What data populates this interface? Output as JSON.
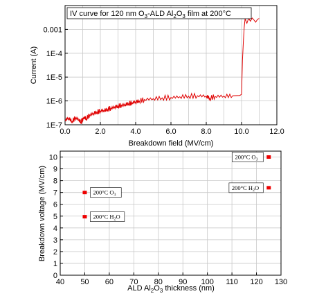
{
  "chart_data": [
    {
      "type": "line",
      "title": "",
      "annotation": {
        "prefix": "IV curve for 120 nm O",
        "sub1": "3",
        "mid1": "-ALD Al",
        "sub2": "2",
        "mid2": "O",
        "sub3": "3",
        "suffix": " film at 200°C"
      },
      "xlabel": "Breakdown field (MV/cm)",
      "ylabel": "Current (A)",
      "xlim": [
        0.0,
        12.0
      ],
      "ylim": [
        1e-07,
        0.01
      ],
      "yscale": "log",
      "grid": true,
      "xticks": [
        "0.0",
        "2.0",
        "4.0",
        "6.0",
        "8.0",
        "10.0",
        "12.0"
      ],
      "yticks": [
        {
          "value": 1e-07,
          "label": "1E-7"
        },
        {
          "value": 1e-06,
          "label": "1E-6"
        },
        {
          "value": 1e-05,
          "label": "1E-5"
        },
        {
          "value": 0.0001,
          "label": "1E-4"
        },
        {
          "value": 0.001,
          "label": "0.001"
        }
      ],
      "color": "#e00000",
      "series": [
        {
          "x": [
            0.0,
            0.2,
            0.4,
            0.6,
            0.8,
            0.9,
            1.0,
            1.1,
            1.2,
            1.4,
            1.6,
            1.8,
            2.0,
            2.2,
            2.4,
            2.6,
            2.8,
            3.0,
            3.2,
            3.4,
            3.6,
            3.8,
            4.0,
            4.2,
            4.5,
            5.0,
            5.5,
            6.0,
            6.5,
            7.0,
            7.5,
            8.0,
            8.2,
            8.5,
            9.0,
            9.5,
            9.9,
            10.0,
            10.05,
            10.1,
            10.15,
            10.2,
            10.3,
            10.4,
            10.5,
            10.6,
            10.7,
            10.8,
            10.9,
            11.0
          ],
          "y": [
            1.6e-07,
            1.9e-07,
            1.4e-07,
            2e-07,
            1.6e-07,
            1.3e-07,
            1.7e-07,
            2.1e-07,
            1.8e-07,
            2.6e-07,
            3e-07,
            3.4e-07,
            3.8e-07,
            4e-07,
            4.4e-07,
            5e-07,
            5.6e-07,
            6e-07,
            6.6e-07,
            7e-07,
            7.8e-07,
            8.4e-07,
            9.2e-07,
            1e-06,
            1.15e-06,
            1.25e-06,
            1.35e-06,
            1.4e-06,
            1.5e-06,
            1.6e-06,
            1.65e-06,
            1.6e-06,
            1.3e-06,
            1.55e-06,
            1.6e-06,
            1.65e-06,
            1.7e-06,
            1.9e-06,
            5e-05,
            0.0003,
            0.0012,
            0.0028,
            0.0018,
            0.0029,
            0.0022,
            0.003,
            0.0025,
            0.002,
            0.0026,
            0.0029
          ]
        }
      ]
    },
    {
      "type": "scatter",
      "title": "",
      "xlabel": {
        "prefix": "ALD Al",
        "sub1": "2",
        "mid": "O",
        "sub2": "3",
        "suffix": " thickness (nm)"
      },
      "ylabel": "Breakdown voltage (MV/cm)",
      "xlim": [
        40,
        130
      ],
      "ylim": [
        0,
        10.5
      ],
      "grid": true,
      "xticks": [
        "40",
        "50",
        "60",
        "70",
        "80",
        "90",
        "100",
        "110",
        "120",
        "130"
      ],
      "yticks": [
        "0",
        "1",
        "2",
        "3",
        "4",
        "5",
        "6",
        "7",
        "8",
        "9",
        "10"
      ],
      "color": "#ee0000",
      "points": [
        {
          "x": 50,
          "y": 7.0,
          "label": {
            "main": "200°C O",
            "sub": "3"
          },
          "side": "right"
        },
        {
          "x": 50,
          "y": 4.95,
          "label": {
            "main": "200°C H",
            "sub": "2",
            "tail": "O"
          },
          "side": "right"
        },
        {
          "x": 125,
          "y": 10.0,
          "label": {
            "main": "200°C O",
            "sub": "3"
          },
          "side": "left"
        },
        {
          "x": 125,
          "y": 7.4,
          "label": {
            "main": "200°C H",
            "sub": "2",
            "tail": "O"
          },
          "side": "left"
        }
      ]
    }
  ]
}
